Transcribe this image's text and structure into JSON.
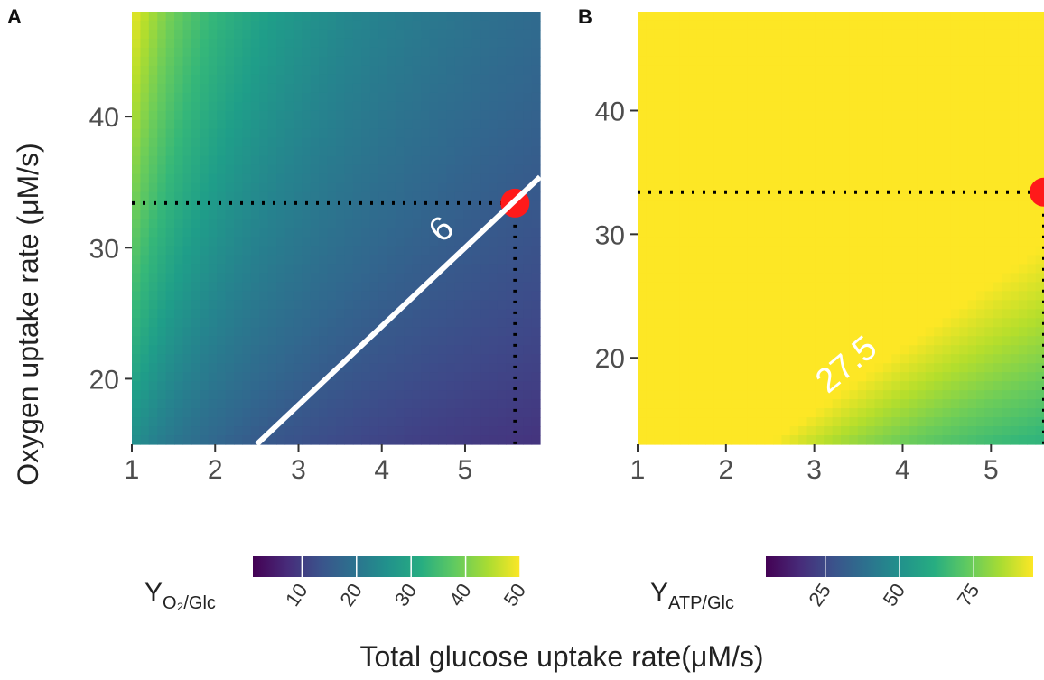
{
  "figure": {
    "xlabel": "Total glucose uptake rate(μM/s)",
    "ylabel": "Oxygen uptake rate (μM/s)"
  },
  "chart_data": [
    {
      "panel": "A",
      "type": "heatmap",
      "colormap": "viridis",
      "xlim": [
        1,
        5.9
      ],
      "ylim": [
        15,
        48
      ],
      "x_ticks": [
        1,
        2,
        3,
        4,
        5
      ],
      "y_ticks": [
        20,
        30,
        40
      ],
      "color_var": "Y_O2/Glc",
      "color_range": [
        1,
        50
      ],
      "contour": {
        "level": 6,
        "label": "6",
        "color": "#ffffff"
      },
      "highlight_point": {
        "x": 5.6,
        "y": 33.4,
        "color": "#ff1a1a"
      },
      "legend": {
        "title_main": "Y",
        "title_sub": "O₂/Glc",
        "ticks": [
          10,
          20,
          30,
          40,
          50
        ],
        "range": [
          1,
          50
        ]
      }
    },
    {
      "panel": "B",
      "type": "heatmap",
      "colormap": "viridis",
      "xlim": [
        1,
        5.6
      ],
      "ylim": [
        13,
        48
      ],
      "x_ticks": [
        1,
        2,
        3,
        4,
        5
      ],
      "y_ticks": [
        20,
        30,
        40
      ],
      "color_var": "Y_ATP/Glc",
      "color_range": [
        5,
        95
      ],
      "contour": {
        "level": 27.5,
        "label": "27.5",
        "color": "#ffffff"
      },
      "highlight_point": {
        "x": 5.6,
        "y": 33.4,
        "color": "#ff1a1a"
      },
      "legend": {
        "title_main": "Y",
        "title_sub": "ATP/Glc",
        "ticks": [
          25,
          50,
          75
        ],
        "range": [
          5,
          95
        ]
      }
    }
  ]
}
